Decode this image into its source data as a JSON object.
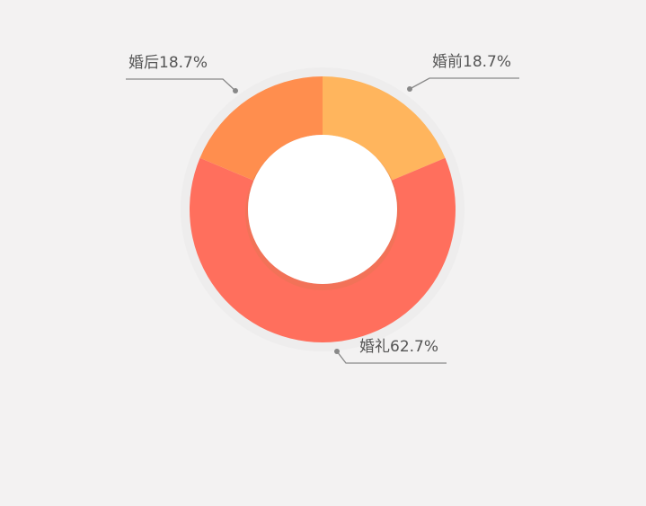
{
  "chart_data": {
    "type": "pie",
    "variant": "donut",
    "slices": [
      {
        "name": "婚前",
        "value": 18.7,
        "label": "婚前18.7%",
        "color": "#ffb55d"
      },
      {
        "name": "婚礼",
        "value": 62.7,
        "label": "婚礼62.7%",
        "color": "#ff6f5d"
      },
      {
        "name": "婚后",
        "value": 18.7,
        "label": "婚后18.7%",
        "color": "#ff8e4e"
      }
    ],
    "title": "",
    "legend": "none"
  },
  "colors": {
    "background": "#f3f2f2",
    "center": "#ffffff",
    "leader_line": "#888888",
    "label_text": "#555555"
  }
}
